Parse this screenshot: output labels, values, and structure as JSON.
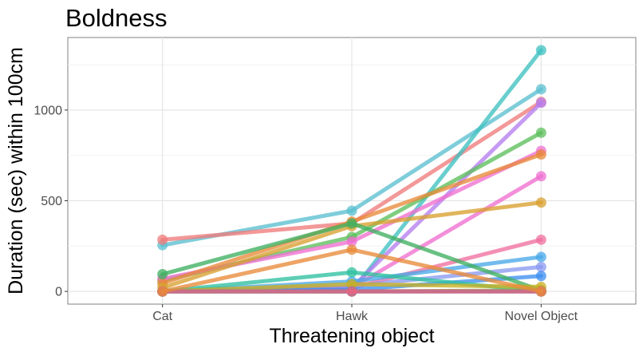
{
  "chart_data": {
    "type": "line",
    "title": "Boldness",
    "xlabel": "Threatening object",
    "ylabel": "Duration (sec) within 100cm",
    "categories": [
      "Cat",
      "Hawk",
      "Novel Object"
    ],
    "yticks": [
      0,
      500,
      1000
    ],
    "ylim": [
      -70,
      1400
    ],
    "grid": true,
    "legend": "none",
    "series": [
      {
        "color": "#5bbfd0",
        "values": [
          255,
          445,
          1115
        ]
      },
      {
        "color": "#f07b7b",
        "values": [
          285,
          375,
          1045
        ]
      },
      {
        "color": "#3fc0c0",
        "values": [
          0,
          0,
          1330
        ]
      },
      {
        "color": "#b57df0",
        "values": [
          0,
          20,
          1040
        ]
      },
      {
        "color": "#5cbf5c",
        "values": [
          60,
          300,
          875
        ]
      },
      {
        "color": "#ef6fd0",
        "values": [
          70,
          275,
          775
        ]
      },
      {
        "color": "#e88a3a",
        "values": [
          45,
          385,
          755
        ]
      },
      {
        "color": "#ef6fd0",
        "values": [
          0,
          20,
          635
        ]
      },
      {
        "color": "#d9a030",
        "values": [
          20,
          360,
          490
        ]
      },
      {
        "color": "#f06f9f",
        "values": [
          0,
          20,
          285
        ]
      },
      {
        "color": "#4aa8e8",
        "values": [
          0,
          55,
          190
        ]
      },
      {
        "color": "#8a9af0",
        "values": [
          0,
          30,
          135
        ]
      },
      {
        "color": "#3d8ff0",
        "values": [
          0,
          10,
          85
        ]
      },
      {
        "color": "#3fb060",
        "values": [
          95,
          375,
          5
        ]
      },
      {
        "color": "#30c0a0",
        "values": [
          0,
          105,
          0
        ]
      },
      {
        "color": "#8fb030",
        "values": [
          0,
          0,
          5
        ]
      },
      {
        "color": "#c8b020",
        "values": [
          0,
          40,
          25
        ]
      },
      {
        "color": "#e05aa0",
        "values": [
          0,
          0,
          0
        ]
      },
      {
        "color": "#1fa6b0",
        "values": [
          0,
          0,
          0
        ]
      },
      {
        "color": "#f06080",
        "values": [
          0,
          0,
          0
        ]
      },
      {
        "color": "#e88a3a",
        "values": [
          0,
          230,
          0
        ]
      }
    ]
  }
}
